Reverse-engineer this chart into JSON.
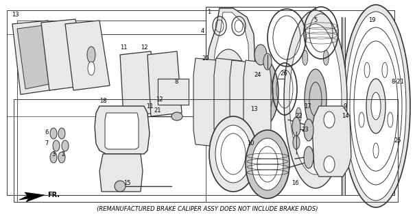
{
  "caption": "(REMANUFACTURED BRAKE CALIPER ASSY DOES NOT INCLUDE BRAKE PADS)",
  "bg_color": "#ffffff",
  "fig_width": 6.05,
  "fig_height": 3.2,
  "dpi": 100,
  "caption_fontsize": 6.0,
  "line_color": "#333333",
  "gray_fill": "#c8c8c8",
  "light_gray": "#e8e8e8",
  "dark_gray": "#888888"
}
